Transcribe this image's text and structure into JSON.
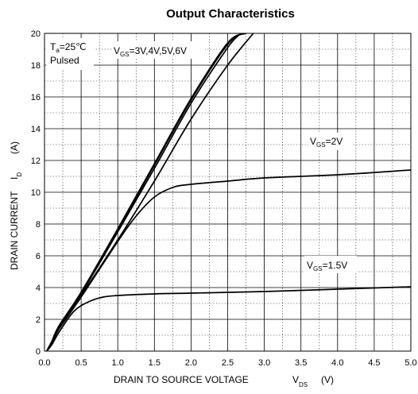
{
  "chart_data": {
    "type": "line",
    "title": "Output Characteristics",
    "xlabel": {
      "main": "DRAIN TO SOURCE VOLTAGE",
      "symbol": "V",
      "subscript": "DS",
      "unit": "(V)"
    },
    "ylabel": {
      "main": "DRAIN CURRENT",
      "symbol": "I",
      "subscript": "D",
      "unit": "(A)"
    },
    "xlim": [
      0,
      5.0
    ],
    "ylim": [
      0,
      20
    ],
    "xticks": [
      "0.0",
      "0.5",
      "1.0",
      "1.5",
      "2.0",
      "2.5",
      "3.0",
      "3.5",
      "4.0",
      "4.5",
      "5.0"
    ],
    "yticks": [
      "0",
      "2",
      "4",
      "6",
      "8",
      "10",
      "12",
      "14",
      "16",
      "18",
      "20"
    ],
    "grid": "major solid, minor dotted",
    "conditions": {
      "temp_symbol": "T",
      "temp_subscript": "a",
      "temp_value": "=25℃",
      "mode": "Pulsed"
    },
    "annotations": [
      {
        "symbol": "V",
        "subscript": "GS",
        "value": "=3V,4V,5V,6V"
      },
      {
        "symbol": "V",
        "subscript": "GS",
        "value": "=2V"
      },
      {
        "symbol": "V",
        "subscript": "GS",
        "value": "=1.5V"
      }
    ],
    "series": [
      {
        "name": "VGS=6V",
        "x": [
          0.03,
          0.1,
          0.2,
          0.5,
          1.0,
          1.5,
          2.0,
          2.5,
          2.75
        ],
        "y": [
          0,
          0.6,
          1.6,
          3.7,
          7.7,
          11.8,
          15.9,
          19.4,
          20
        ]
      },
      {
        "name": "VGS=5V",
        "x": [
          0.03,
          0.1,
          0.2,
          0.5,
          1.0,
          1.5,
          2.0,
          2.5,
          2.72
        ],
        "y": [
          0,
          0.6,
          1.6,
          3.7,
          7.6,
          11.7,
          15.8,
          19.3,
          20
        ]
      },
      {
        "name": "VGS=4V",
        "x": [
          0.03,
          0.1,
          0.2,
          0.5,
          1.0,
          1.5,
          2.0,
          2.5,
          2.68
        ],
        "y": [
          0,
          0.6,
          1.6,
          3.6,
          7.5,
          11.5,
          15.6,
          19.1,
          20
        ]
      },
      {
        "name": "VGS=3V",
        "x": [
          0.03,
          0.1,
          0.2,
          0.5,
          1.0,
          1.5,
          2.0,
          2.5,
          2.85
        ],
        "y": [
          0,
          0.6,
          1.5,
          3.5,
          7.0,
          10.7,
          14.6,
          18.0,
          20
        ]
      },
      {
        "name": "VGS=2V",
        "x": [
          0.03,
          0.1,
          0.2,
          0.5,
          1.0,
          1.25,
          1.5,
          1.75,
          2.0,
          2.5,
          3.0,
          4.0,
          5.0
        ],
        "y": [
          0,
          0.5,
          1.4,
          3.4,
          6.9,
          8.5,
          9.7,
          10.3,
          10.5,
          10.7,
          10.9,
          11.1,
          11.4
        ]
      },
      {
        "name": "VGS=1.5V",
        "x": [
          0.03,
          0.1,
          0.2,
          0.4,
          0.6,
          0.8,
          1.0,
          1.5,
          2.0,
          3.0,
          4.0,
          5.0
        ],
        "y": [
          0,
          0.4,
          1.2,
          2.5,
          3.1,
          3.4,
          3.5,
          3.6,
          3.65,
          3.75,
          3.9,
          4.05
        ]
      }
    ]
  }
}
